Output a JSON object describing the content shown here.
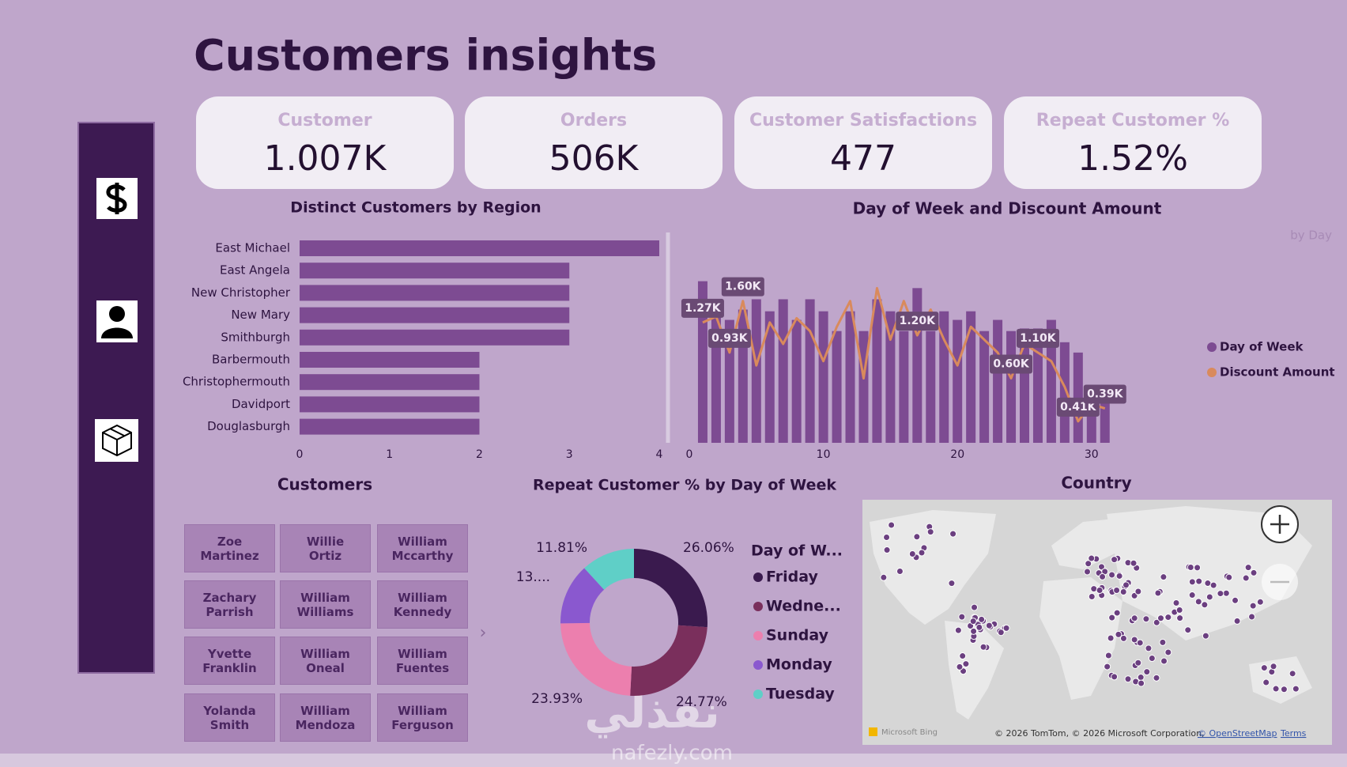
{
  "title": "Customers insights",
  "kpis": [
    {
      "label": "Customer",
      "value": "1.007K"
    },
    {
      "label": "Orders",
      "value": "506K"
    },
    {
      "label": "Customer Satisfactions",
      "value": "477"
    },
    {
      "label": "Repeat Customer %",
      "value": "1.52%"
    }
  ],
  "chart_data": [
    {
      "type": "bar",
      "title": "Distinct Customers by Region",
      "categories": [
        "East Michael",
        "East Angela",
        "New Christopher",
        "New Mary",
        "Smithburgh",
        "Barbermouth",
        "Christophermouth",
        "Davidport",
        "Douglasburgh"
      ],
      "values": [
        4,
        3,
        3,
        3,
        3,
        2,
        2,
        2,
        2
      ],
      "color": "#7d4b92",
      "xlim": [
        0,
        4
      ],
      "xticks": [
        0,
        1,
        2,
        3,
        4
      ]
    },
    {
      "type": "combo",
      "title": "Day of Week and Discount Amount",
      "caption": "by Day",
      "x": [
        1,
        2,
        3,
        4,
        5,
        6,
        7,
        8,
        9,
        10,
        11,
        12,
        13,
        14,
        15,
        16,
        17,
        18,
        19,
        20,
        21,
        22,
        23,
        24,
        25,
        26,
        27,
        28,
        29,
        30,
        31
      ],
      "xlim": [
        0,
        31.5
      ],
      "xticks": [
        0,
        10,
        20,
        30
      ],
      "ylim": [
        0,
        220
      ],
      "series": [
        {
          "name": "Day of Week",
          "type": "bar",
          "color": "#7d4b92",
          "values": [
            188,
            160,
            143,
            155,
            167,
            153,
            167,
            143,
            167,
            153,
            130,
            153,
            130,
            167,
            153,
            130,
            180,
            130,
            153,
            143,
            153,
            130,
            143,
            130,
            133,
            133,
            143,
            117,
            105,
            47,
            50
          ]
        },
        {
          "name": "Discount Amount",
          "type": "line",
          "color": "#d98a5c",
          "values": [
            140,
            147,
            105,
            165,
            90,
            140,
            115,
            145,
            130,
            95,
            135,
            165,
            75,
            180,
            120,
            165,
            125,
            155,
            120,
            90,
            135,
            120,
            105,
            75,
            115,
            105,
            95,
            65,
            25,
            45,
            40
          ]
        }
      ],
      "annotations": [
        {
          "x": 1,
          "text": "1.27K"
        },
        {
          "x": 3,
          "text": "0.93K"
        },
        {
          "x": 4,
          "text": "1.60K"
        },
        {
          "x": 17,
          "text": "1.20K"
        },
        {
          "x": 24,
          "text": "0.60K"
        },
        {
          "x": 26,
          "text": "1.10K"
        },
        {
          "x": 29,
          "text": "0.41K"
        },
        {
          "x": 31,
          "text": "0.39K"
        }
      ]
    },
    {
      "type": "donut",
      "title": "Repeat Customer % by Day of Week",
      "legend_title": "Day of W...",
      "categories": [
        "Friday",
        "Wedne...",
        "Sunday",
        "Monday",
        "Tuesday"
      ],
      "values": [
        26.06,
        24.77,
        23.93,
        13.43,
        11.81
      ],
      "value_labels": [
        "26.06%",
        "24.77%",
        "23.93%",
        "13....",
        "11.81%"
      ],
      "colors": [
        "#3a1a4e",
        "#7a2f5c",
        "#ec7fae",
        "#8a58cf",
        "#5fcfc7"
      ]
    }
  ],
  "customers": {
    "title": "Customers",
    "names": [
      "Zoe Martinez",
      "Willie Ortiz",
      "William Mccarthy",
      "Zachary Parrish",
      "William Williams",
      "William Kennedy",
      "Yvette Franklin",
      "William Oneal",
      "William Fuentes",
      "Yolanda Smith",
      "William Mendoza",
      "William Ferguson"
    ]
  },
  "map": {
    "title": "Country",
    "brand": "Microsoft Bing",
    "attribution": "© 2026 TomTom, © 2026 Microsoft Corporation,",
    "link": "© OpenStreetMap",
    "terms": "Terms"
  },
  "watermark": {
    "arabic": "نفذلي",
    "latin": "nafezly.com"
  }
}
